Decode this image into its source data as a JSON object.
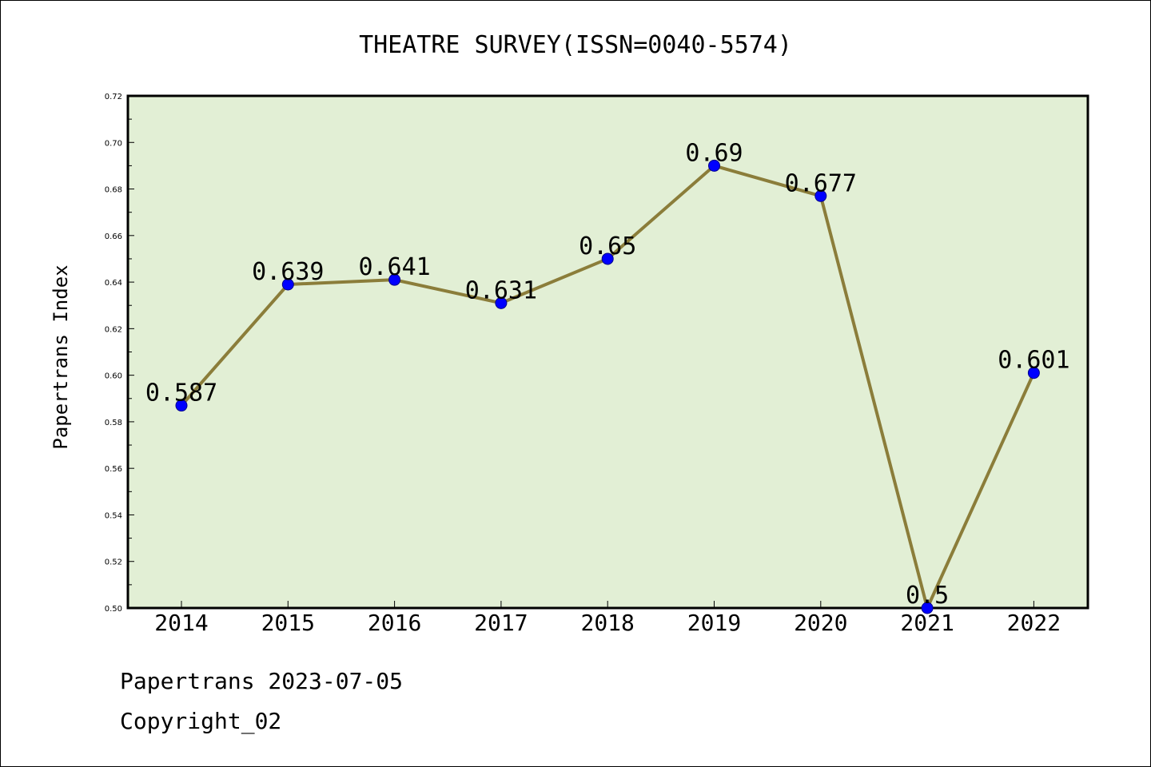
{
  "chart_data": {
    "type": "line",
    "title": "THEATRE SURVEY(ISSN=0040-5574)",
    "xlabel": "",
    "ylabel": "Papertrans Index",
    "categories": [
      "2014",
      "2015",
      "2016",
      "2017",
      "2018",
      "2019",
      "2020",
      "2021",
      "2022"
    ],
    "values": [
      0.587,
      0.639,
      0.641,
      0.631,
      0.65,
      0.69,
      0.677,
      0.5,
      0.601
    ],
    "data_labels": [
      "0.587",
      "0.639",
      "0.641",
      "0.631",
      "0.65",
      "0.69",
      "0.677",
      "0.5",
      "0.601"
    ],
    "ylim": [
      0.5,
      0.72
    ],
    "yticks": [
      "0.50",
      "0.52",
      "0.54",
      "0.56",
      "0.58",
      "0.60",
      "0.62",
      "0.64",
      "0.66",
      "0.68",
      "0.70",
      "0.72"
    ],
    "grid": false,
    "colors": {
      "plot_background": "#e2efd5",
      "line": "#8b7d3a",
      "marker": "#0000ff"
    }
  },
  "footer": {
    "line1": "Papertrans 2023-07-05",
    "line2": "Copyright_02"
  }
}
